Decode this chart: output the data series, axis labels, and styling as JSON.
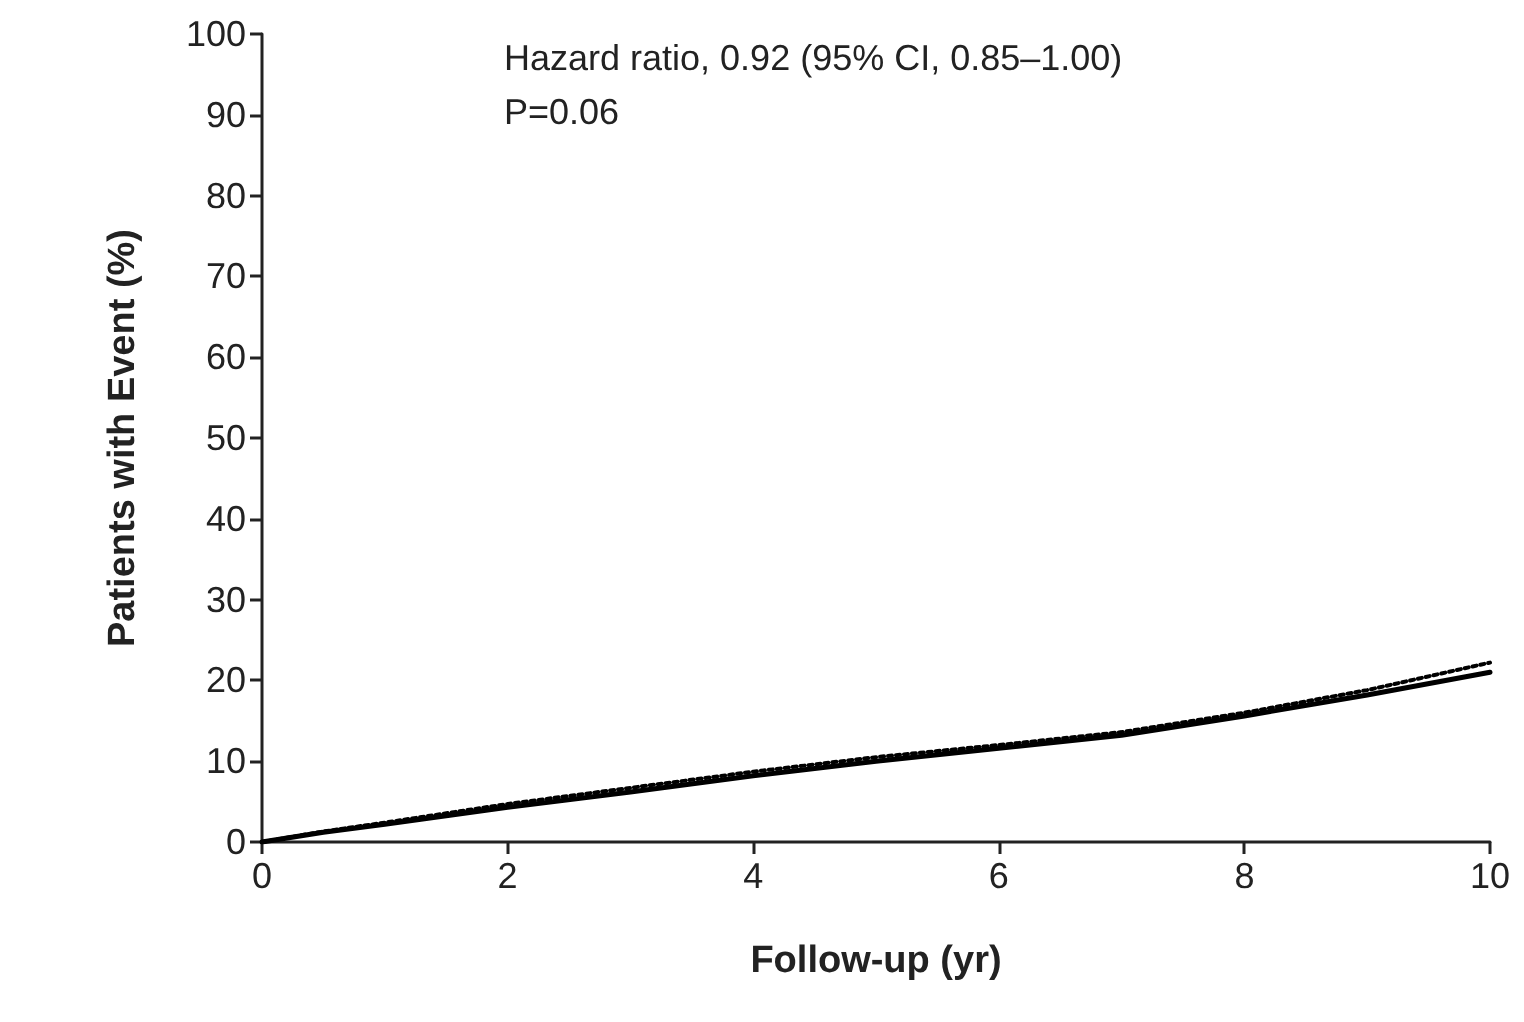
{
  "chart_data": {
    "type": "line",
    "xlabel": "Follow-up (yr)",
    "ylabel": "Patients with Event (%)",
    "annotations": [
      "Hazard ratio, 0.92 (95% CI, 0.85–1.00)",
      "P=0.06"
    ],
    "xlim": [
      0,
      10
    ],
    "xticks": [
      0,
      2,
      4,
      6,
      8,
      10
    ],
    "ylim": [
      0,
      100
    ],
    "yticks": [
      0,
      10,
      20,
      30,
      40,
      50,
      60,
      70,
      80,
      90,
      100
    ],
    "grid": false,
    "marker": "none",
    "series": [
      {
        "color": "#000000",
        "line_style": "solid",
        "x": [
          0,
          0.5,
          1,
          2,
          3,
          4,
          5,
          6,
          7,
          8,
          9,
          10
        ],
        "values": [
          0,
          1.2,
          2.2,
          4.3,
          6.2,
          8.2,
          10.0,
          11.6,
          13.2,
          15.6,
          18.2,
          21
        ]
      },
      {
        "color": "#000000",
        "line_style": "dotted",
        "x": [
          0,
          0.5,
          1,
          2,
          3,
          4,
          5,
          6,
          7,
          8,
          9,
          10
        ],
        "values": [
          0,
          1.3,
          2.4,
          4.7,
          6.7,
          8.7,
          10.5,
          12.0,
          13.6,
          16.0,
          18.8,
          22.2
        ]
      }
    ]
  }
}
